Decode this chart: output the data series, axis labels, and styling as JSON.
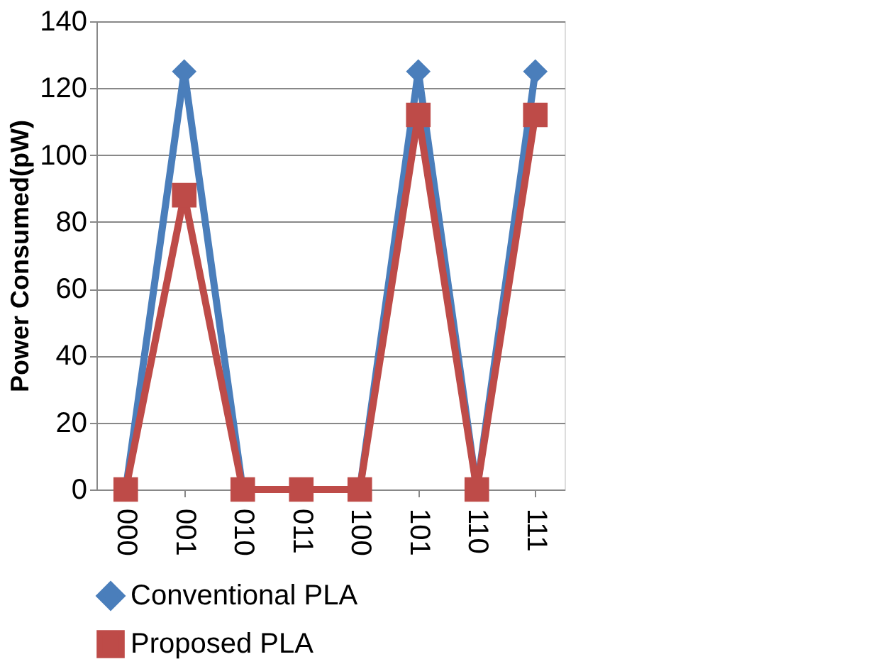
{
  "chart_data": {
    "type": "line",
    "ylabel": "Power Consumed(pW)",
    "categories": [
      "000",
      "001",
      "010",
      "011",
      "100",
      "101",
      "110",
      "111"
    ],
    "series": [
      {
        "name": "Conventional PLA",
        "color": "#4a7ebb",
        "marker": "diamond",
        "line_style": "solid",
        "values": [
          0,
          125,
          0,
          0,
          0,
          125,
          0,
          125
        ]
      },
      {
        "name": "Proposed PLA",
        "color": "#be4b48",
        "marker": "square",
        "line_style": "solid",
        "values": [
          0,
          88,
          0,
          0,
          0,
          112,
          0,
          112
        ]
      }
    ],
    "ylim": [
      0,
      140
    ],
    "yticks": [
      0,
      20,
      40,
      60,
      80,
      100,
      120,
      140
    ],
    "grid": "y",
    "legend": "bottom"
  }
}
